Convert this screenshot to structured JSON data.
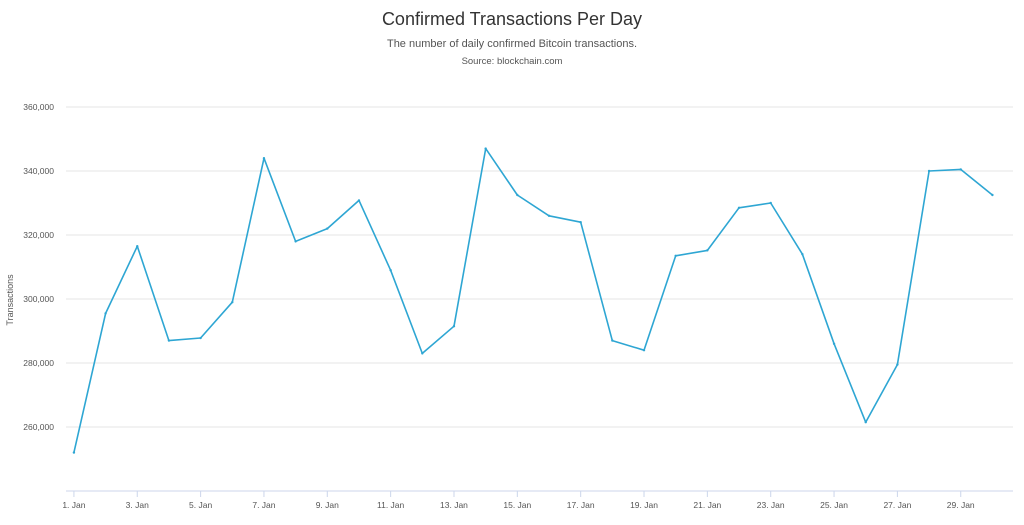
{
  "chart_data": {
    "type": "line",
    "title": "Confirmed Transactions Per Day",
    "subtitle": "The number of daily confirmed Bitcoin transactions.",
    "source": "Source: blockchain.com",
    "xlabel": "",
    "ylabel": "Transactions",
    "ylim": [
      240000,
      370000
    ],
    "grid": true,
    "legend": "none",
    "line_color": "#2ea6d3",
    "y_ticks": [
      {
        "value": 260000,
        "label": "260,000"
      },
      {
        "value": 280000,
        "label": "280,000"
      },
      {
        "value": 300000,
        "label": "300,000"
      },
      {
        "value": 320000,
        "label": "320,000"
      },
      {
        "value": 340000,
        "label": "340,000"
      },
      {
        "value": 360000,
        "label": "360,000"
      }
    ],
    "x_ticks": [
      {
        "day": 1,
        "label": "1. Jan"
      },
      {
        "day": 3,
        "label": "3. Jan"
      },
      {
        "day": 5,
        "label": "5. Jan"
      },
      {
        "day": 7,
        "label": "7. Jan"
      },
      {
        "day": 9,
        "label": "9. Jan"
      },
      {
        "day": 11,
        "label": "11. Jan"
      },
      {
        "day": 13,
        "label": "13. Jan"
      },
      {
        "day": 15,
        "label": "15. Jan"
      },
      {
        "day": 17,
        "label": "17. Jan"
      },
      {
        "day": 19,
        "label": "19. Jan"
      },
      {
        "day": 21,
        "label": "21. Jan"
      },
      {
        "day": 23,
        "label": "23. Jan"
      },
      {
        "day": 25,
        "label": "25. Jan"
      },
      {
        "day": 27,
        "label": "27. Jan"
      },
      {
        "day": 29,
        "label": "29. Jan"
      }
    ],
    "series": [
      {
        "x": [
          1,
          2,
          3,
          4,
          5,
          6,
          7,
          8,
          9,
          10,
          11,
          12,
          13,
          14,
          15,
          16,
          17,
          18,
          19,
          20,
          21,
          22,
          23,
          24,
          25,
          26,
          27,
          28,
          29,
          30
        ],
        "values": [
          252000,
          295500,
          316500,
          287000,
          287800,
          299000,
          344000,
          318000,
          322000,
          330800,
          309000,
          283000,
          291500,
          347000,
          332500,
          326000,
          324000,
          287000,
          284000,
          313500,
          315200,
          328500,
          330000,
          314000,
          286000,
          261500,
          279500,
          340000,
          340500,
          332500
        ]
      }
    ]
  }
}
